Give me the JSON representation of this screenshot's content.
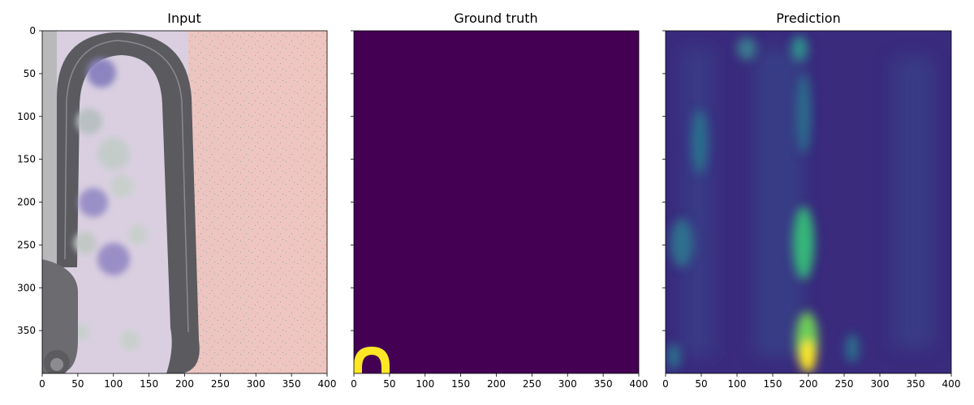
{
  "panels": [
    {
      "id": "input",
      "title": "Input",
      "kind": "aerial-image",
      "xticks": [
        "0",
        "50",
        "100",
        "150",
        "200",
        "250",
        "300",
        "350",
        "400"
      ],
      "yticks": [
        "0",
        "50",
        "100",
        "150",
        "200",
        "250",
        "300",
        "350"
      ],
      "show_ytick_labels": true
    },
    {
      "id": "ground-truth",
      "title": "Ground truth",
      "kind": "mask",
      "xticks": [
        "0",
        "50",
        "100",
        "150",
        "200",
        "250",
        "300",
        "350",
        "400"
      ],
      "yticks": [
        "0",
        "50",
        "100",
        "150",
        "200",
        "250",
        "300",
        "350"
      ],
      "show_ytick_labels": false,
      "colors": {
        "background": "#440154",
        "mask": "#fde725"
      }
    },
    {
      "id": "prediction",
      "title": "Prediction",
      "kind": "heatmap",
      "xticks": [
        "0",
        "50",
        "100",
        "150",
        "200",
        "250",
        "300",
        "350",
        "400"
      ],
      "yticks": [
        "0",
        "50",
        "100",
        "150",
        "200",
        "250",
        "300",
        "350"
      ],
      "show_ytick_labels": false,
      "colors": {
        "low": "#3b2a7a",
        "mid": "#21918c",
        "high": "#fde725"
      }
    }
  ],
  "image_extent": {
    "x": [
      0,
      400
    ],
    "y": [
      400,
      0
    ]
  }
}
